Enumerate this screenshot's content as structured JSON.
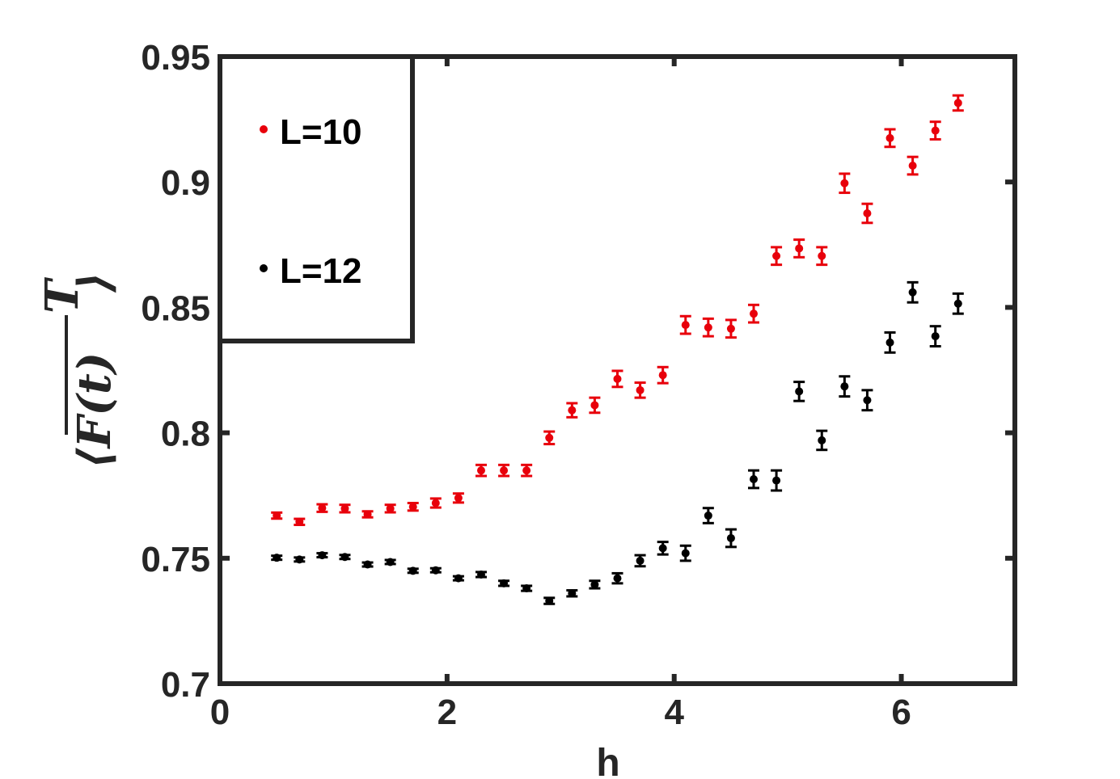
{
  "chart_data": {
    "type": "scatter",
    "xlabel": "h",
    "ylabel": "⟨F(t)",
    "ylabel_superscript": "T",
    "ylabel_close": "⟩",
    "xlim": [
      0,
      7
    ],
    "ylim": [
      0.7,
      0.95
    ],
    "xticks": [
      0,
      2,
      4,
      6
    ],
    "xtick_labels": [
      "0",
      "2",
      "4",
      "6"
    ],
    "yticks": [
      0.7,
      0.75,
      0.8,
      0.85,
      0.9,
      0.95
    ],
    "ytick_labels": [
      "0.7",
      "0.75",
      "0.8",
      "0.85",
      "0.9",
      "0.95"
    ],
    "grid": false,
    "legend_position": "top-left",
    "x": [
      0.5,
      0.7,
      0.9,
      1.1,
      1.3,
      1.5,
      1.7,
      1.9,
      2.1,
      2.3,
      2.5,
      2.7,
      2.9,
      3.1,
      3.3,
      3.5,
      3.7,
      3.9,
      4.1,
      4.3,
      4.5,
      4.7,
      4.9,
      5.1,
      5.3,
      5.5,
      5.7,
      5.9,
      6.1,
      6.3,
      6.5
    ],
    "series": [
      {
        "name": "L=10",
        "color": "#e8000b",
        "values": [
          0.767,
          0.7645,
          0.77,
          0.7698,
          0.7675,
          0.7698,
          0.7705,
          0.772,
          0.774,
          0.785,
          0.785,
          0.785,
          0.798,
          0.809,
          0.811,
          0.8215,
          0.817,
          0.823,
          0.843,
          0.842,
          0.8415,
          0.8475,
          0.8705,
          0.8735,
          0.8705,
          0.8995,
          0.8875,
          0.9175,
          0.9065,
          0.9205,
          0.9315
        ],
        "errors": [
          0.0012,
          0.0012,
          0.0015,
          0.0015,
          0.0012,
          0.0015,
          0.0015,
          0.0018,
          0.0018,
          0.0022,
          0.0022,
          0.0022,
          0.0025,
          0.0028,
          0.003,
          0.0032,
          0.003,
          0.0032,
          0.0035,
          0.0035,
          0.0035,
          0.0035,
          0.0035,
          0.0035,
          0.0035,
          0.0038,
          0.0038,
          0.0035,
          0.0035,
          0.0035,
          0.003
        ]
      },
      {
        "name": "L=12",
        "color": "#000000",
        "values": [
          0.7502,
          0.7495,
          0.7512,
          0.7505,
          0.7475,
          0.7485,
          0.745,
          0.7452,
          0.742,
          0.7435,
          0.74,
          0.738,
          0.733,
          0.736,
          0.7395,
          0.742,
          0.749,
          0.754,
          0.752,
          0.767,
          0.758,
          0.7815,
          0.781,
          0.8165,
          0.797,
          0.8185,
          0.813,
          0.836,
          0.856,
          0.8385,
          0.8515
        ],
        "errors": [
          0.0008,
          0.0008,
          0.0008,
          0.0008,
          0.0008,
          0.0008,
          0.0008,
          0.0008,
          0.0008,
          0.001,
          0.001,
          0.001,
          0.0012,
          0.0012,
          0.0015,
          0.002,
          0.0022,
          0.0025,
          0.003,
          0.003,
          0.0035,
          0.0035,
          0.004,
          0.0038,
          0.0038,
          0.004,
          0.004,
          0.004,
          0.004,
          0.004,
          0.004
        ]
      }
    ]
  }
}
